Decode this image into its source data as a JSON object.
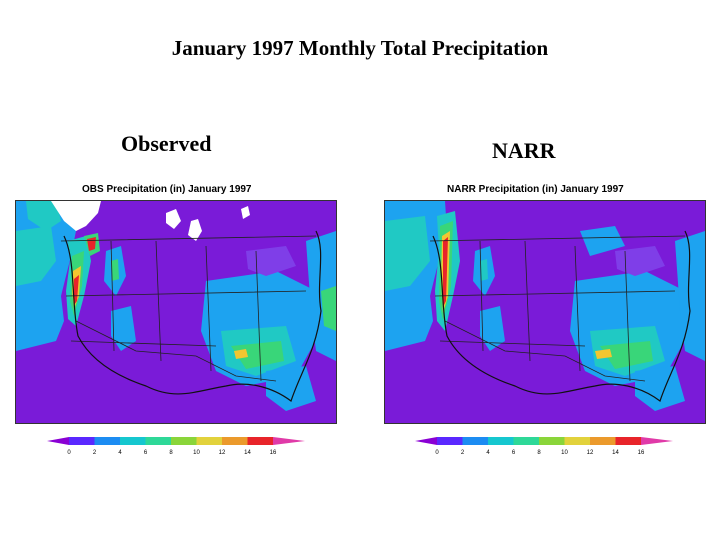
{
  "page": {
    "title": "January 1997 Monthly Total Precipitation"
  },
  "panels": [
    {
      "label": "Observed",
      "map_title": "OBS Precipitation (in) January 1997"
    },
    {
      "label": "NARR",
      "map_title": "NARR Precipitation (in) January 1997"
    }
  ],
  "colorbar": {
    "ticks": [
      "0",
      "2",
      "4",
      "6",
      "8",
      "10",
      "12",
      "14",
      "16"
    ],
    "colors": [
      "#8a00d4",
      "#5a28ff",
      "#1c8cf2",
      "#15c7cf",
      "#2ed898",
      "#8ad53a",
      "#e2d23c",
      "#eb9a2c",
      "#e8242a",
      "#e03aa8"
    ]
  },
  "legend_colors": {
    "ocean_low": "#7a1bd8",
    "land_low": "#7f3ee8",
    "moist": "#1da3f0",
    "wet": "#20c9c4",
    "very_wet": "#39d679",
    "heavy": "#f2c630",
    "extreme": "#e8242a"
  }
}
